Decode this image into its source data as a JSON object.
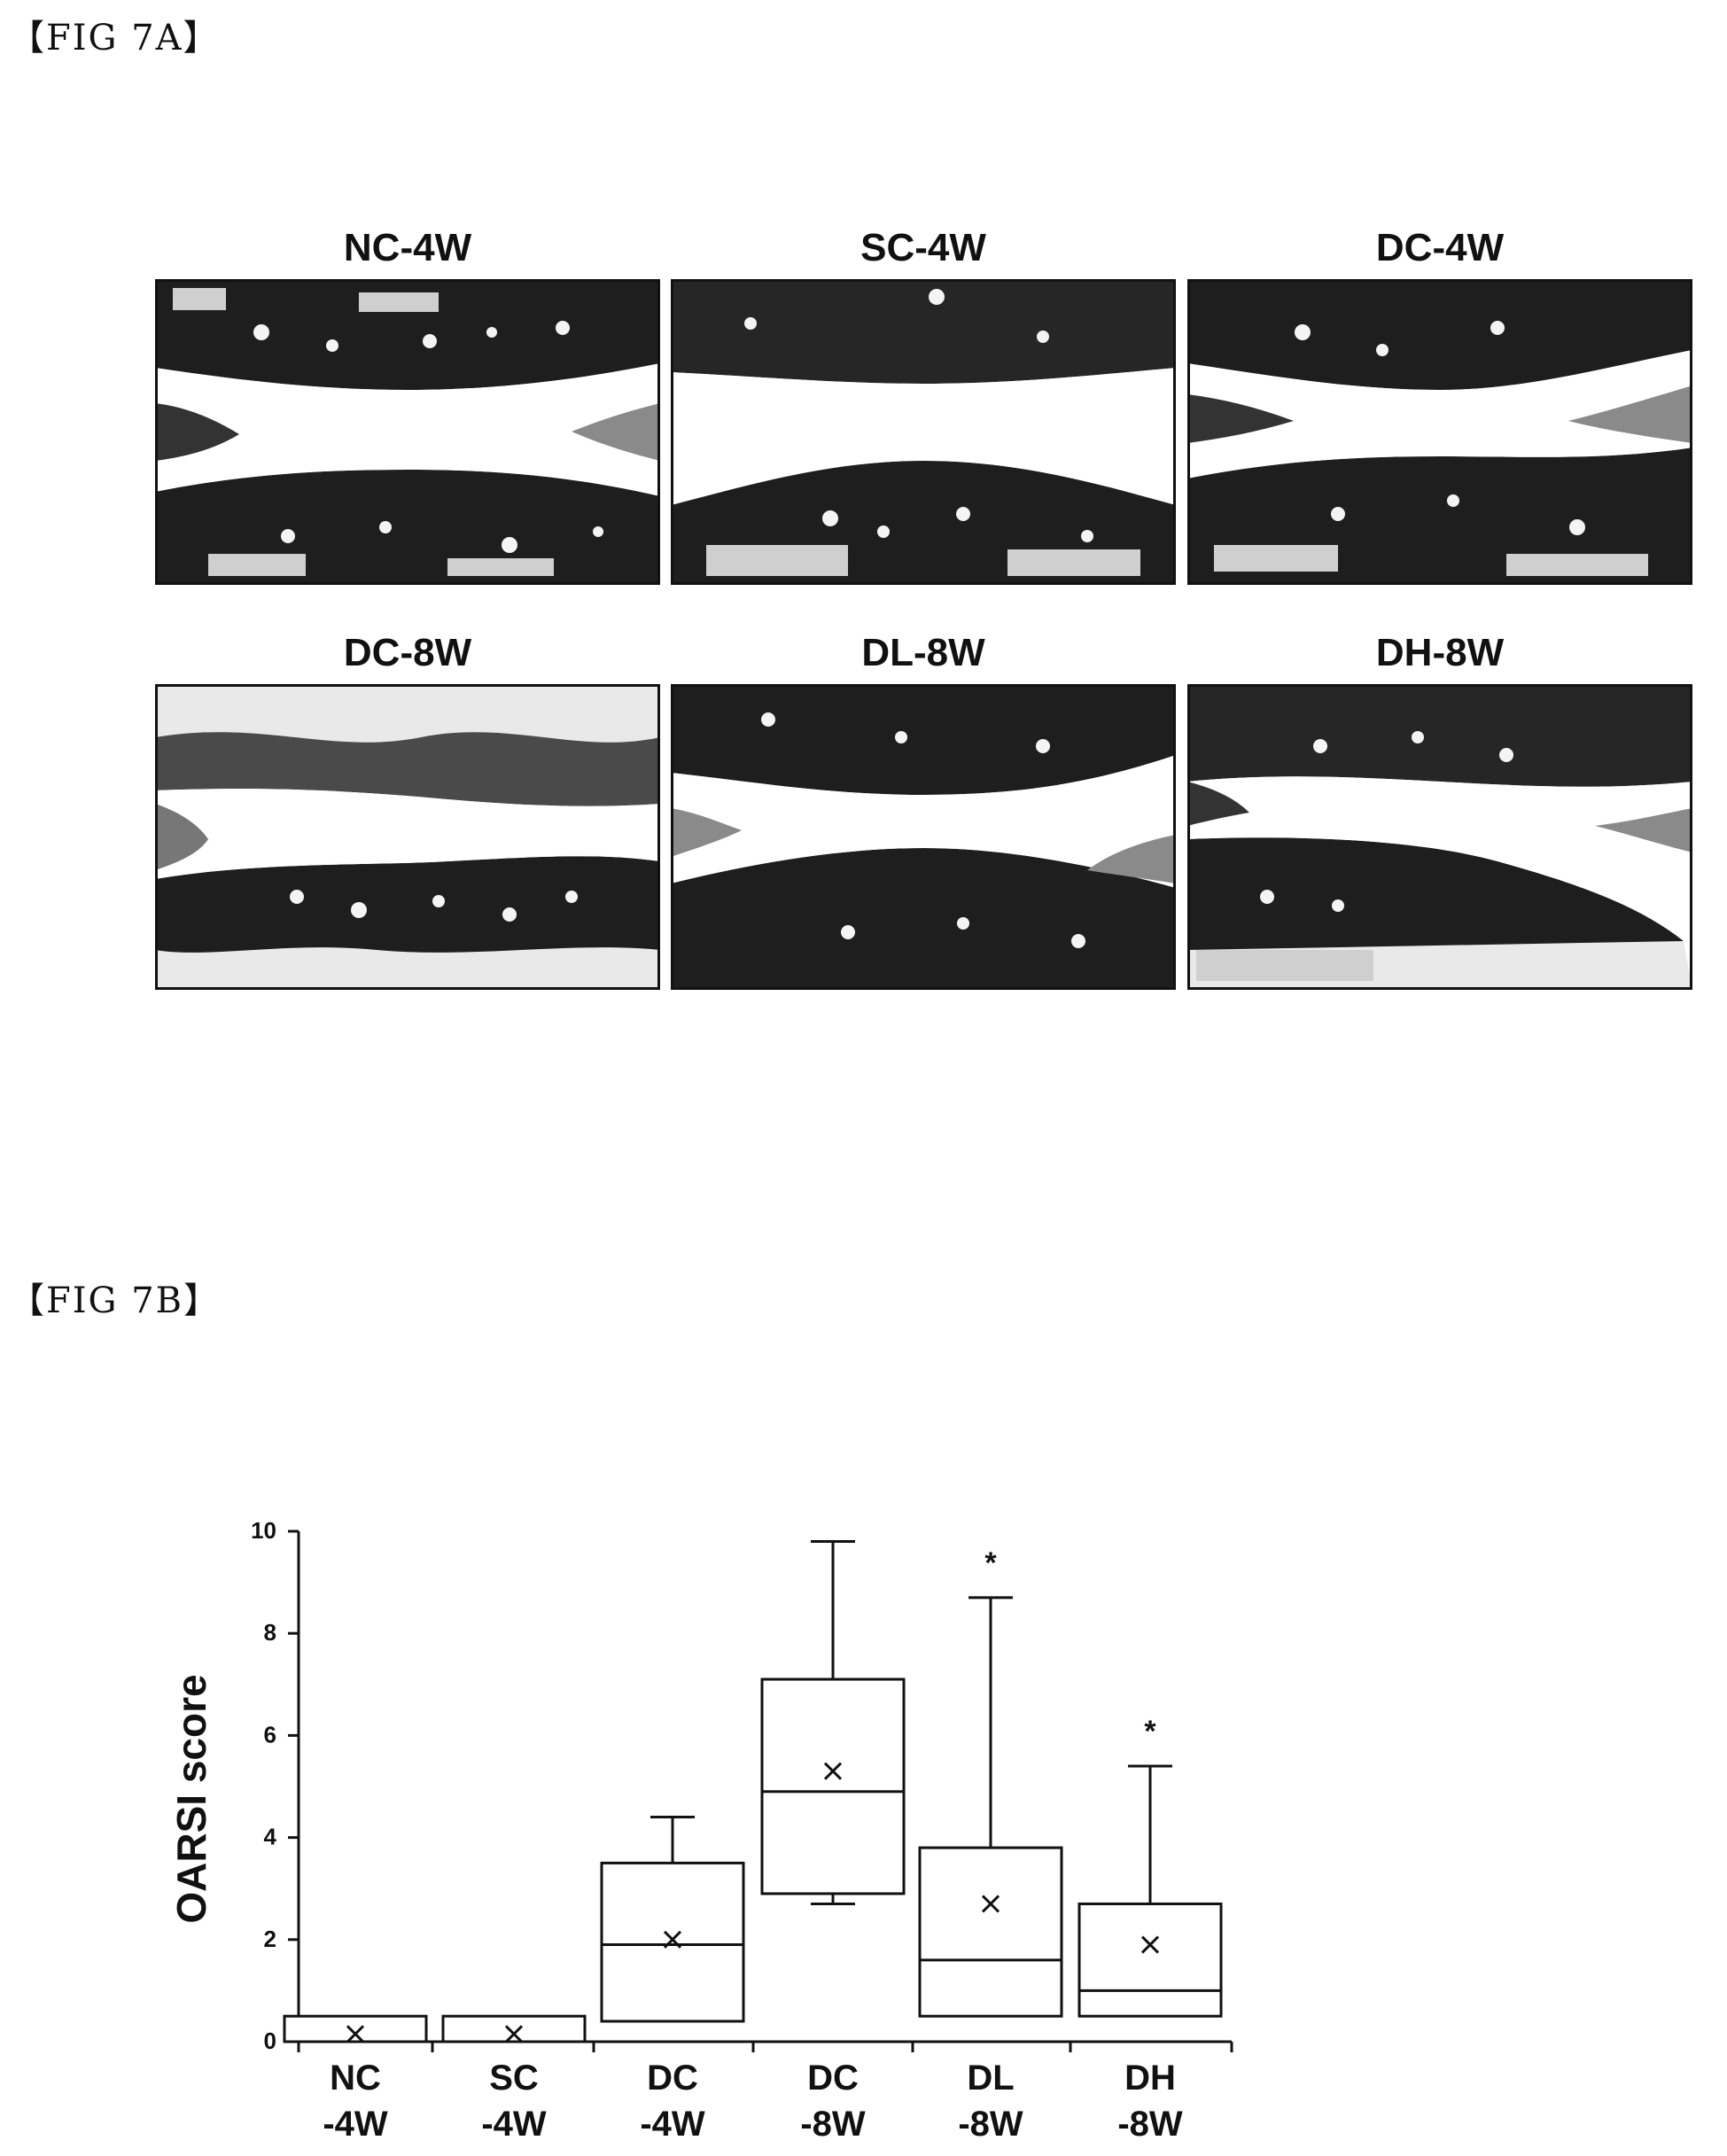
{
  "fig_a": {
    "label": "【FIG 7A】",
    "panels": [
      {
        "title": "NC-4W"
      },
      {
        "title": "SC-4W"
      },
      {
        "title": "DC-4W"
      },
      {
        "title": "DC-8W"
      },
      {
        "title": "DL-8W"
      },
      {
        "title": "DH-8W"
      }
    ]
  },
  "fig_b": {
    "label": "【FIG 7B】"
  },
  "chart_data": {
    "type": "box",
    "title": "",
    "ylabel": "OARSI score",
    "xlabel": "",
    "ylim": [
      0,
      10
    ],
    "yticks": [
      "0",
      "2",
      "4",
      "6",
      "8",
      "10"
    ],
    "grid": false,
    "categories": [
      {
        "line1": "NC",
        "line2": "-4W"
      },
      {
        "line1": "SC",
        "line2": "-4W"
      },
      {
        "line1": "DC",
        "line2": "-4W"
      },
      {
        "line1": "DC",
        "line2": "-8W"
      },
      {
        "line1": "DL",
        "line2": "-8W"
      },
      {
        "line1": "DH",
        "line2": "-8W"
      }
    ],
    "boxes": [
      {
        "min": 0,
        "q1": 0,
        "median": 0,
        "q3": 0.5,
        "max": 0.5,
        "mean": 0.15,
        "sig": ""
      },
      {
        "min": 0,
        "q1": 0,
        "median": 0,
        "q3": 0.5,
        "max": 0.5,
        "mean": 0.15,
        "sig": ""
      },
      {
        "min": 0.4,
        "q1": 0.4,
        "median": 1.9,
        "q3": 3.5,
        "max": 4.4,
        "mean": 2.0,
        "sig": ""
      },
      {
        "min": 2.7,
        "q1": 2.9,
        "median": 4.9,
        "q3": 7.1,
        "max": 9.8,
        "mean": 5.3,
        "sig": ""
      },
      {
        "min": 0.5,
        "q1": 0.5,
        "median": 1.6,
        "q3": 3.8,
        "max": 8.7,
        "mean": 2.7,
        "sig": "*"
      },
      {
        "min": 0.5,
        "q1": 0.5,
        "median": 1.0,
        "q3": 2.7,
        "max": 5.4,
        "mean": 1.9,
        "sig": "*"
      }
    ]
  }
}
